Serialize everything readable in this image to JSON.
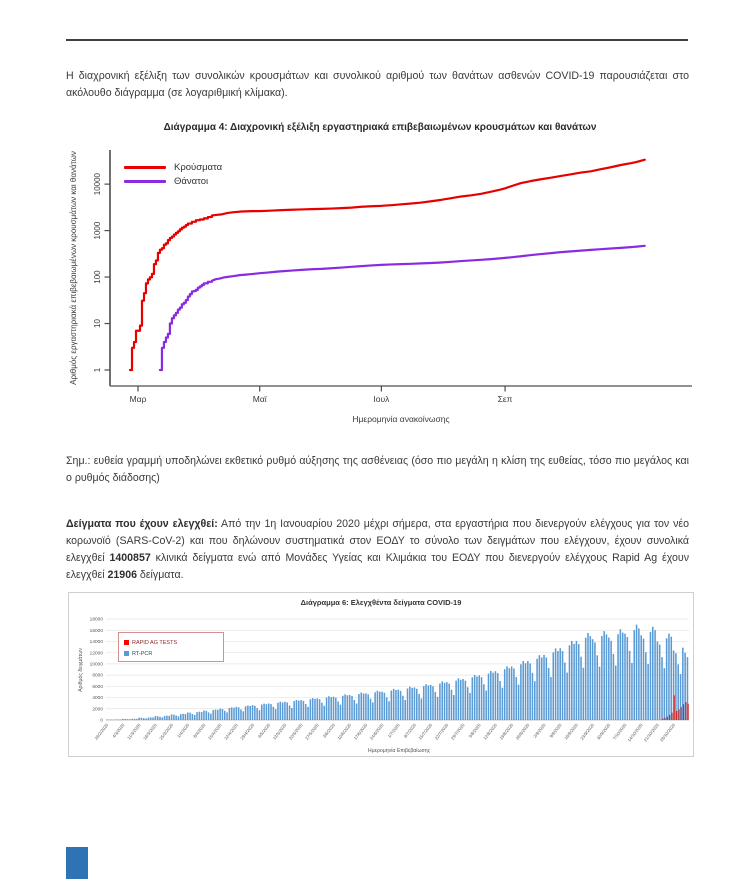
{
  "intro_paragraph": "Η διαχρονική εξέλιξη των συνολικών κρουσμάτων και συνολικού αριθμού των θανάτων ασθενών COVID-19 παρουσιάζεται στο ακόλουθο διάγραμμα (σε λογαριθμική κλίμακα).",
  "note_paragraph": "Σημ.: ευθεία γραμμή υποδηλώνει εκθετικό ρυθμό αύξησης της ασθένειας (όσο πιο μεγάλη η κλίση της ευθείας, τόσο πιο μεγάλος και ο ρυθμός διάδοσης)",
  "samples_paragraph": {
    "lead_bold": "Δείγματα που έχουν ελεγχθεί:",
    "segment1": " Από την 1η Ιανουαρίου 2020 μέχρι σήμερα, στα εργαστήρια που διενεργούν ελέγχους για τον νέο κορωνοϊό (SARS-CoV-2) και που δηλώνουν συστηματικά στον ΕΟΔΥ το σύνολο των δειγμάτων που ελέγχουν, έχουν συνολικά ελεγχθεί ",
    "value_pcr": "1400857",
    "segment2": " κλινικά δείγματα ενώ από Μονάδες Υγείας και Κλιμάκια του ΕΟΔΥ που διενεργούν ελέγχους Rapid Ag έχουν ελεγχθεί ",
    "value_rapid": "21906",
    "segment3": " δείγματα."
  },
  "footer": {
    "accent_color": "#2E74B5"
  },
  "chart_data": [
    {
      "type": "line",
      "title": "Διάγραμμα 4: Διαχρονική εξέλιξη εργαστηριακά επιβεβαιωμένων κρουσμάτων και θανάτων",
      "xlabel": "Ημερομηνία ανακοίνωσης",
      "ylabel": "Αριθμός εργαστηριακά επιβεβαιωμένων κρουσμάτων και θανάτων",
      "yscale": "log",
      "yticks": [
        1,
        10,
        100,
        1000,
        10000
      ],
      "xticks": [
        {
          "label": "Μαρ",
          "day": 8
        },
        {
          "label": "Μαϊ",
          "day": 69
        },
        {
          "label": "Ιουλ",
          "day": 130
        },
        {
          "label": "Σεπ",
          "day": 192
        }
      ],
      "x_day0_date": "22/2/2020",
      "legend_position": "top-left",
      "series": [
        {
          "name": "Κρούσματα",
          "color": "#E60000",
          "step_until_day": 45,
          "points": [
            [
              4,
              1
            ],
            [
              5,
              3
            ],
            [
              6,
              4
            ],
            [
              7,
              7
            ],
            [
              9,
              9
            ],
            [
              10,
              31
            ],
            [
              11,
              45
            ],
            [
              12,
              73
            ],
            [
              13,
              89
            ],
            [
              14,
              99
            ],
            [
              15,
              117
            ],
            [
              16,
              190
            ],
            [
              17,
              228
            ],
            [
              18,
              331
            ],
            [
              19,
              387
            ],
            [
              20,
              418
            ],
            [
              21,
              495
            ],
            [
              22,
              530
            ],
            [
              23,
              624
            ],
            [
              24,
              695
            ],
            [
              25,
              743
            ],
            [
              26,
              821
            ],
            [
              27,
              892
            ],
            [
              28,
              966
            ],
            [
              29,
              1061
            ],
            [
              30,
              1156
            ],
            [
              31,
              1212
            ],
            [
              32,
              1314
            ],
            [
              33,
              1415
            ],
            [
              35,
              1544
            ],
            [
              37,
              1673
            ],
            [
              39,
              1735
            ],
            [
              41,
              1832
            ],
            [
              43,
              1955
            ],
            [
              45,
              2114
            ],
            [
              47,
              2170
            ],
            [
              50,
              2235
            ],
            [
              53,
              2401
            ],
            [
              56,
              2490
            ],
            [
              60,
              2576
            ],
            [
              65,
              2620
            ],
            [
              69,
              2626
            ],
            [
              74,
              2678
            ],
            [
              80,
              2760
            ],
            [
              85,
              2810
            ],
            [
              90,
              2853
            ],
            [
              95,
              2900
            ],
            [
              100,
              2937
            ],
            [
              105,
              2980
            ],
            [
              110,
              3049
            ],
            [
              115,
              3121
            ],
            [
              120,
              3256
            ],
            [
              125,
              3343
            ],
            [
              130,
              3409
            ],
            [
              135,
              3522
            ],
            [
              140,
              3672
            ],
            [
              145,
              3826
            ],
            [
              150,
              4012
            ],
            [
              155,
              4279
            ],
            [
              160,
              4587
            ],
            [
              165,
              4974
            ],
            [
              170,
              5421
            ],
            [
              175,
              5749
            ],
            [
              180,
              6177
            ],
            [
              185,
              6858
            ],
            [
              190,
              7684
            ],
            [
              192,
              8138
            ],
            [
              196,
              9280
            ],
            [
              200,
              10524
            ],
            [
              205,
              11663
            ],
            [
              210,
              12734
            ],
            [
              215,
              13730
            ],
            [
              220,
              14978
            ],
            [
              225,
              16286
            ],
            [
              230,
              17707
            ],
            [
              235,
              18886
            ],
            [
              240,
              20947
            ],
            [
              245,
              23060
            ],
            [
              250,
              25802
            ],
            [
              255,
              28216
            ],
            [
              258,
              30000
            ],
            [
              262,
              33500
            ]
          ]
        },
        {
          "name": "Θάνατοι",
          "color": "#8A2BE2",
          "step_until_day": 45,
          "points": [
            [
              19,
              1
            ],
            [
              20,
              3
            ],
            [
              21,
              4
            ],
            [
              22,
              5
            ],
            [
              23,
              6
            ],
            [
              24,
              10
            ],
            [
              25,
              13
            ],
            [
              26,
              15
            ],
            [
              27,
              17
            ],
            [
              28,
              20
            ],
            [
              29,
              22
            ],
            [
              30,
              26
            ],
            [
              31,
              28
            ],
            [
              32,
              32
            ],
            [
              33,
              38
            ],
            [
              34,
              43
            ],
            [
              35,
              49
            ],
            [
              36,
              50
            ],
            [
              37,
              53
            ],
            [
              38,
              59
            ],
            [
              39,
              63
            ],
            [
              40,
              68
            ],
            [
              41,
              73
            ],
            [
              43,
              79
            ],
            [
              45,
              83
            ],
            [
              47,
              90
            ],
            [
              49,
              93
            ],
            [
              51,
              98
            ],
            [
              53,
              101
            ],
            [
              56,
              105
            ],
            [
              59,
              110
            ],
            [
              62,
              113
            ],
            [
              65,
              116
            ],
            [
              69,
              121
            ],
            [
              73,
              125
            ],
            [
              77,
              130
            ],
            [
              81,
              134
            ],
            [
              85,
              138
            ],
            [
              90,
              143
            ],
            [
              95,
              147
            ],
            [
              100,
              150
            ],
            [
              105,
              155
            ],
            [
              110,
              160
            ],
            [
              115,
              166
            ],
            [
              120,
              172
            ],
            [
              125,
              178
            ],
            [
              130,
              183
            ],
            [
              135,
              187
            ],
            [
              140,
              190
            ],
            [
              145,
              193
            ],
            [
              150,
              197
            ],
            [
              155,
              201
            ],
            [
              160,
              206
            ],
            [
              165,
              213
            ],
            [
              170,
              221
            ],
            [
              175,
              228
            ],
            [
              180,
              235
            ],
            [
              185,
              243
            ],
            [
              190,
              254
            ],
            [
              195,
              266
            ],
            [
              200,
              280
            ],
            [
              205,
              297
            ],
            [
              210,
              313
            ],
            [
              215,
              327
            ],
            [
              220,
              344
            ],
            [
              225,
              357
            ],
            [
              230,
              370
            ],
            [
              235,
              384
            ],
            [
              240,
              398
            ],
            [
              245,
              411
            ],
            [
              250,
              425
            ],
            [
              255,
              441
            ],
            [
              258,
              452
            ],
            [
              262,
              470
            ]
          ]
        }
      ]
    },
    {
      "type": "bar",
      "title": "Διάγραμμα 6: Ελεγχθέντα δείγματα COVID-19",
      "xlabel": "Ημερομηνία Επιβεβαίωσης",
      "ylabel": "Αριθμός δειγμάτων",
      "ylim": [
        0,
        18000
      ],
      "ytick_step": 2000,
      "grid": true,
      "week_labels": [
        "26/2/2020",
        "4/3/2020",
        "11/3/2020",
        "18/3/2020",
        "25/3/2020",
        "1/4/2020",
        "8/4/2020",
        "15/4/2020",
        "22/4/2020",
        "29/4/2020",
        "6/5/2020",
        "13/5/2020",
        "20/5/2020",
        "27/5/2020",
        "3/6/2020",
        "10/6/2020",
        "17/6/2020",
        "24/6/2020",
        "1/7/2020",
        "8/7/2020",
        "15/7/2020",
        "22/7/2020",
        "29/7/2020",
        "5/8/2020",
        "12/8/2020",
        "19/8/2020",
        "26/8/2020",
        "2/9/2020",
        "9/9/2020",
        "16/9/2020",
        "23/9/2020",
        "30/9/2020",
        "7/10/2020",
        "14/10/2020",
        "21/10/2020",
        "28/10/2020"
      ],
      "series": [
        {
          "name": "RAPID AG TESTS",
          "color": "#CC2B2B",
          "start_index": 240,
          "values": [
            250,
            400,
            600,
            900,
            1300,
            4400,
            1600,
            1900,
            2300,
            2800,
            3200,
            2900
          ]
        },
        {
          "name": "RT-PCR",
          "color": "#5B9BD5",
          "values": [
            90,
            86,
            72,
            59,
            94,
            99,
            95,
            200,
            192,
            160,
            132,
            208,
            220,
            212,
            420,
            403,
            336,
            277,
            437,
            462,
            445,
            700,
            672,
            560,
            462,
            728,
            770,
            742,
            1000,
            960,
            800,
            660,
            1040,
            1100,
            1060,
            1350,
            1296,
            1080,
            891,
            1404,
            1485,
            1431,
            1700,
            1632,
            1360,
            1122,
            1768,
            1870,
            1802,
            2050,
            1968,
            1640,
            1353,
            2132,
            2255,
            2173,
            2350,
            2256,
            1880,
            1551,
            2444,
            2585,
            2491,
            2650,
            2544,
            2120,
            1749,
            2756,
            2915,
            2809,
            2950,
            2832,
            2360,
            1947,
            3068,
            3245,
            3127,
            3250,
            3120,
            2600,
            2145,
            3380,
            3575,
            3445,
            3550,
            3408,
            2840,
            2343,
            3692,
            3905,
            3763,
            3850,
            3696,
            3080,
            2541,
            4004,
            4235,
            4081,
            4150,
            3984,
            3320,
            2739,
            4316,
            4565,
            4399,
            4450,
            4272,
            3560,
            2937,
            4628,
            4895,
            4717,
            4750,
            4560,
            3800,
            3135,
            4940,
            5225,
            5035,
            5050,
            4848,
            4040,
            3333,
            5252,
            5555,
            5353,
            5400,
            5184,
            4320,
            3564,
            5616,
            5940,
            5724,
            5800,
            5568,
            4640,
            3828,
            6032,
            6380,
            6148,
            6250,
            6000,
            5000,
            4125,
            6500,
            6875,
            6625,
            6750,
            6480,
            5400,
            4455,
            7020,
            7425,
            7155,
            7300,
            7008,
            5840,
            4818,
            7592,
            8030,
            7738,
            7950,
            7632,
            6360,
            5247,
            8268,
            8745,
            8427,
            8700,
            8352,
            6960,
            5742,
            9048,
            9570,
            9222,
            9550,
            9168,
            7640,
            6303,
            9932,
            10505,
            10123,
            10500,
            10080,
            8400,
            6930,
            10920,
            11550,
            11130,
            11600,
            11136,
            9280,
            7656,
            12064,
            12760,
            12296,
            12800,
            12288,
            10240,
            8448,
            13312,
            14080,
            13568,
            14100,
            13536,
            11280,
            9306,
            14664,
            15510,
            14946,
            14400,
            13824,
            11520,
            9504,
            14976,
            15840,
            15264,
            14700,
            14112,
            11760,
            9702,
            15288,
            16170,
            15582,
            15400,
            14784,
            12320,
            10164,
            16016,
            17000,
            16324,
            15100,
            14496,
            12080,
            9966,
            15704,
            16610,
            16006,
            14000,
            13440,
            11200,
            9240,
            14560,
            15400,
            14840,
            12400,
            11904,
            9920,
            8184,
            12896,
            12000,
            11200
          ]
        }
      ]
    }
  ]
}
